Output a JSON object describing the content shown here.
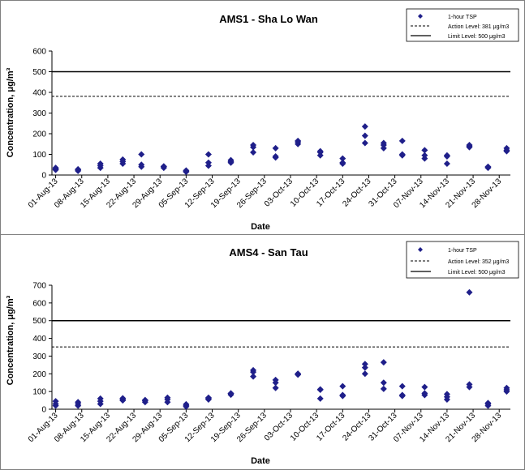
{
  "chart_data": [
    {
      "type": "scatter",
      "title": "AMS1 - Sha Lo Wan",
      "xlabel": "Date",
      "ylabel": "Concentration, μg/m³",
      "ylim": [
        0,
        600
      ],
      "yticks": [
        0,
        100,
        200,
        300,
        400,
        500,
        600
      ],
      "xticks": [
        "01-Aug-13",
        "08-Aug-13",
        "15-Aug-13",
        "22-Aug-13",
        "29-Aug-13",
        "05-Sep-13",
        "12-Sep-13",
        "19-Sep-13",
        "26-Sep-13",
        "03-Oct-13",
        "10-Oct-13",
        "17-Oct-13",
        "24-Oct-13",
        "31-Oct-13",
        "07-Nov-13",
        "14-Nov-13",
        "21-Nov-13",
        "28-Nov-13"
      ],
      "xlim": [
        "2013-07-31",
        "2013-12-01"
      ],
      "legend": {
        "position": "top-right",
        "entries": [
          "1-hour TSP",
          "Action Level: 381 μg/m3",
          "Limit Level: 500 μg/m3"
        ]
      },
      "lines": {
        "action": 381,
        "limit": 500
      },
      "series": [
        {
          "name": "1-hour TSP",
          "color": "#1f1f8a",
          "points": [
            {
              "x": "2013-08-01",
              "y": 25
            },
            {
              "x": "2013-08-01",
              "y": 30
            },
            {
              "x": "2013-08-01",
              "y": 35
            },
            {
              "x": "2013-08-07",
              "y": 20
            },
            {
              "x": "2013-08-07",
              "y": 25
            },
            {
              "x": "2013-08-07",
              "y": 28
            },
            {
              "x": "2013-08-13",
              "y": 35
            },
            {
              "x": "2013-08-13",
              "y": 45
            },
            {
              "x": "2013-08-13",
              "y": 55
            },
            {
              "x": "2013-08-19",
              "y": 55
            },
            {
              "x": "2013-08-19",
              "y": 65
            },
            {
              "x": "2013-08-19",
              "y": 75
            },
            {
              "x": "2013-08-24",
              "y": 40
            },
            {
              "x": "2013-08-24",
              "y": 50
            },
            {
              "x": "2013-08-24",
              "y": 100
            },
            {
              "x": "2013-08-30",
              "y": 35
            },
            {
              "x": "2013-08-30",
              "y": 40
            },
            {
              "x": "2013-08-30",
              "y": 42
            },
            {
              "x": "2013-09-05",
              "y": 15
            },
            {
              "x": "2013-09-05",
              "y": 18
            },
            {
              "x": "2013-09-05",
              "y": 22
            },
            {
              "x": "2013-09-11",
              "y": 45
            },
            {
              "x": "2013-09-11",
              "y": 60
            },
            {
              "x": "2013-09-11",
              "y": 100
            },
            {
              "x": "2013-09-17",
              "y": 60
            },
            {
              "x": "2013-09-17",
              "y": 65
            },
            {
              "x": "2013-09-17",
              "y": 72
            },
            {
              "x": "2013-09-23",
              "y": 110
            },
            {
              "x": "2013-09-23",
              "y": 135
            },
            {
              "x": "2013-09-23",
              "y": 145
            },
            {
              "x": "2013-09-29",
              "y": 85
            },
            {
              "x": "2013-09-29",
              "y": 90
            },
            {
              "x": "2013-09-29",
              "y": 130
            },
            {
              "x": "2013-10-05",
              "y": 150
            },
            {
              "x": "2013-10-05",
              "y": 160
            },
            {
              "x": "2013-10-05",
              "y": 165
            },
            {
              "x": "2013-10-11",
              "y": 95
            },
            {
              "x": "2013-10-11",
              "y": 110
            },
            {
              "x": "2013-10-11",
              "y": 115
            },
            {
              "x": "2013-10-17",
              "y": 55
            },
            {
              "x": "2013-10-17",
              "y": 60
            },
            {
              "x": "2013-10-17",
              "y": 80
            },
            {
              "x": "2013-10-23",
              "y": 155
            },
            {
              "x": "2013-10-23",
              "y": 190
            },
            {
              "x": "2013-10-23",
              "y": 235
            },
            {
              "x": "2013-10-28",
              "y": 130
            },
            {
              "x": "2013-10-28",
              "y": 145
            },
            {
              "x": "2013-10-28",
              "y": 155
            },
            {
              "x": "2013-11-02",
              "y": 95
            },
            {
              "x": "2013-11-02",
              "y": 100
            },
            {
              "x": "2013-11-02",
              "y": 165
            },
            {
              "x": "2013-11-08",
              "y": 80
            },
            {
              "x": "2013-11-08",
              "y": 95
            },
            {
              "x": "2013-11-08",
              "y": 120
            },
            {
              "x": "2013-11-14",
              "y": 55
            },
            {
              "x": "2013-11-14",
              "y": 90
            },
            {
              "x": "2013-11-14",
              "y": 95
            },
            {
              "x": "2013-11-20",
              "y": 135
            },
            {
              "x": "2013-11-20",
              "y": 140
            },
            {
              "x": "2013-11-20",
              "y": 145
            },
            {
              "x": "2013-11-25",
              "y": 35
            },
            {
              "x": "2013-11-25",
              "y": 38
            },
            {
              "x": "2013-11-25",
              "y": 40
            },
            {
              "x": "2013-11-30",
              "y": 115
            },
            {
              "x": "2013-11-30",
              "y": 120
            },
            {
              "x": "2013-11-30",
              "y": 130
            }
          ]
        }
      ]
    },
    {
      "type": "scatter",
      "title": "AMS4 - San Tau",
      "xlabel": "Date",
      "ylabel": "Concentration, μg/m³",
      "ylim": [
        0,
        700
      ],
      "yticks": [
        0,
        100,
        200,
        300,
        400,
        500,
        600,
        700
      ],
      "xticks": [
        "01-Aug-13",
        "08-Aug-13",
        "15-Aug-13",
        "22-Aug-13",
        "29-Aug-13",
        "05-Sep-13",
        "12-Sep-13",
        "19-Sep-13",
        "26-Sep-13",
        "03-Oct-13",
        "10-Oct-13",
        "17-Oct-13",
        "24-Oct-13",
        "31-Oct-13",
        "07-Nov-13",
        "14-Nov-13",
        "21-Nov-13",
        "28-Nov-13"
      ],
      "xlim": [
        "2013-07-31",
        "2013-12-01"
      ],
      "legend": {
        "position": "top-right",
        "entries": [
          "1-hour TSP",
          "Action Level: 352 μg/m3",
          "Limit Level: 500 μg/m3"
        ]
      },
      "lines": {
        "action": 352,
        "limit": 500
      },
      "series": [
        {
          "name": "1-hour TSP",
          "color": "#1f1f8a",
          "points": [
            {
              "x": "2013-08-01",
              "y": 20
            },
            {
              "x": "2013-08-01",
              "y": 30
            },
            {
              "x": "2013-08-01",
              "y": 45
            },
            {
              "x": "2013-08-07",
              "y": 20
            },
            {
              "x": "2013-08-07",
              "y": 30
            },
            {
              "x": "2013-08-07",
              "y": 40
            },
            {
              "x": "2013-08-13",
              "y": 30
            },
            {
              "x": "2013-08-13",
              "y": 45
            },
            {
              "x": "2013-08-13",
              "y": 60
            },
            {
              "x": "2013-08-19",
              "y": 50
            },
            {
              "x": "2013-08-19",
              "y": 55
            },
            {
              "x": "2013-08-19",
              "y": 62
            },
            {
              "x": "2013-08-25",
              "y": 40
            },
            {
              "x": "2013-08-25",
              "y": 48
            },
            {
              "x": "2013-08-25",
              "y": 52
            },
            {
              "x": "2013-08-31",
              "y": 40
            },
            {
              "x": "2013-08-31",
              "y": 55
            },
            {
              "x": "2013-08-31",
              "y": 65
            },
            {
              "x": "2013-09-05",
              "y": 15
            },
            {
              "x": "2013-09-05",
              "y": 22
            },
            {
              "x": "2013-09-05",
              "y": 28
            },
            {
              "x": "2013-09-11",
              "y": 55
            },
            {
              "x": "2013-09-11",
              "y": 60
            },
            {
              "x": "2013-09-11",
              "y": 65
            },
            {
              "x": "2013-09-17",
              "y": 82
            },
            {
              "x": "2013-09-17",
              "y": 88
            },
            {
              "x": "2013-09-17",
              "y": 90
            },
            {
              "x": "2013-09-23",
              "y": 185
            },
            {
              "x": "2013-09-23",
              "y": 210
            },
            {
              "x": "2013-09-23",
              "y": 220
            },
            {
              "x": "2013-09-29",
              "y": 120
            },
            {
              "x": "2013-09-29",
              "y": 150
            },
            {
              "x": "2013-09-29",
              "y": 165
            },
            {
              "x": "2013-10-05",
              "y": 195
            },
            {
              "x": "2013-10-05",
              "y": 200
            },
            {
              "x": "2013-10-05",
              "y": 200
            },
            {
              "x": "2013-10-11",
              "y": 60
            },
            {
              "x": "2013-10-11",
              "y": 110
            },
            {
              "x": "2013-10-11",
              "y": 112
            },
            {
              "x": "2013-10-17",
              "y": 75
            },
            {
              "x": "2013-10-17",
              "y": 80
            },
            {
              "x": "2013-10-17",
              "y": 130
            },
            {
              "x": "2013-10-23",
              "y": 200
            },
            {
              "x": "2013-10-23",
              "y": 235
            },
            {
              "x": "2013-10-23",
              "y": 255
            },
            {
              "x": "2013-10-28",
              "y": 115
            },
            {
              "x": "2013-10-28",
              "y": 150
            },
            {
              "x": "2013-10-28",
              "y": 265
            },
            {
              "x": "2013-11-02",
              "y": 75
            },
            {
              "x": "2013-11-02",
              "y": 80
            },
            {
              "x": "2013-11-02",
              "y": 130
            },
            {
              "x": "2013-11-08",
              "y": 80
            },
            {
              "x": "2013-11-08",
              "y": 90
            },
            {
              "x": "2013-11-08",
              "y": 125
            },
            {
              "x": "2013-11-14",
              "y": 55
            },
            {
              "x": "2013-11-14",
              "y": 70
            },
            {
              "x": "2013-11-14",
              "y": 85
            },
            {
              "x": "2013-11-20",
              "y": 125
            },
            {
              "x": "2013-11-20",
              "y": 140
            },
            {
              "x": "2013-11-20",
              "y": 660
            },
            {
              "x": "2013-11-25",
              "y": 20
            },
            {
              "x": "2013-11-25",
              "y": 30
            },
            {
              "x": "2013-11-25",
              "y": 35
            },
            {
              "x": "2013-11-30",
              "y": 100
            },
            {
              "x": "2013-11-30",
              "y": 110
            },
            {
              "x": "2013-11-30",
              "y": 120
            }
          ]
        }
      ]
    }
  ]
}
